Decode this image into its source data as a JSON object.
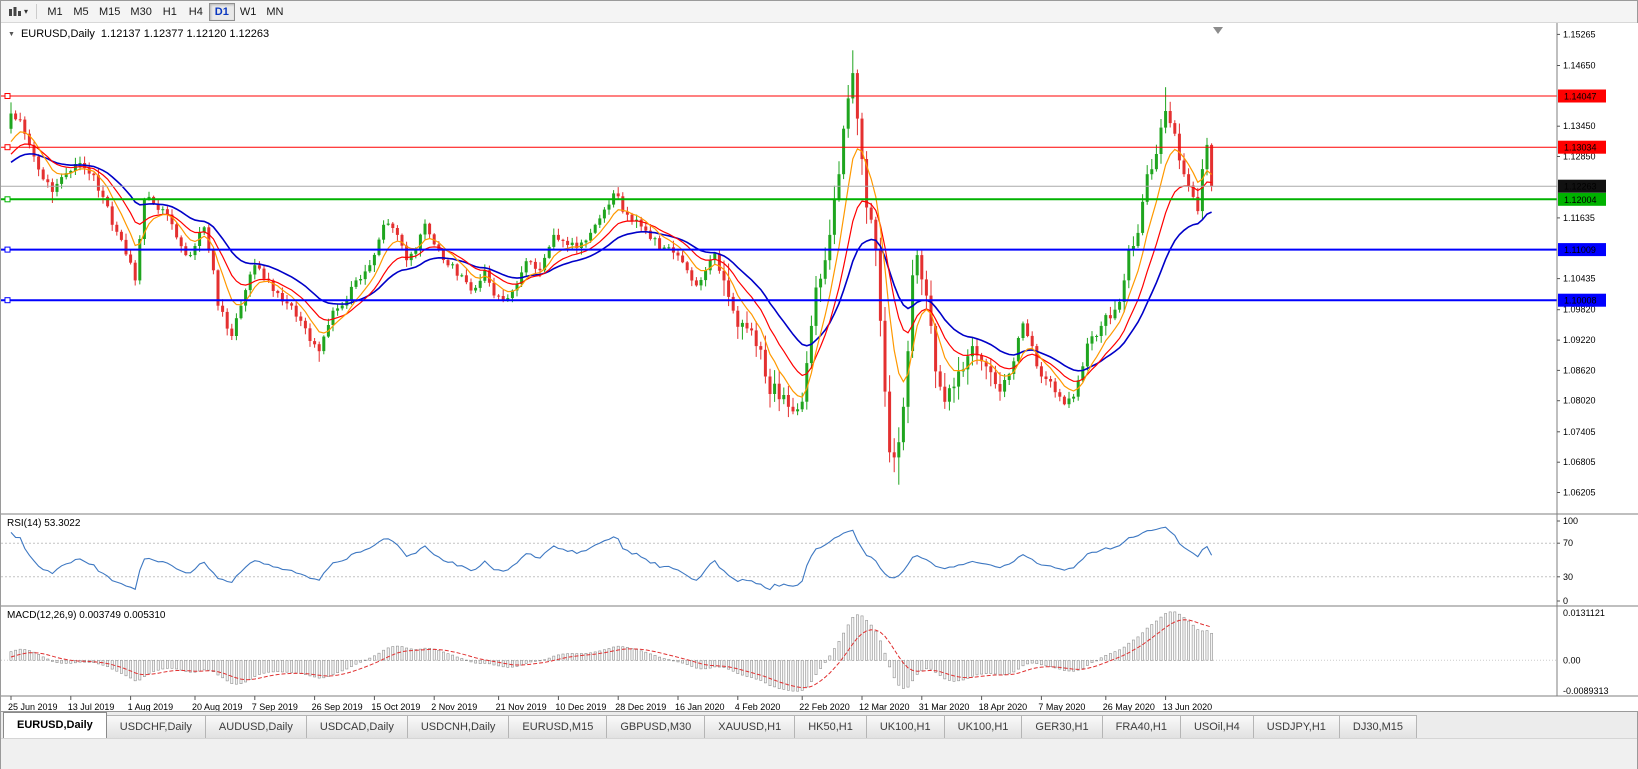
{
  "toolbar": {
    "chart_icon": "candlestick-chart-icon",
    "caret": "▾",
    "timeframes": [
      {
        "label": "M1",
        "active": false
      },
      {
        "label": "M5",
        "active": false
      },
      {
        "label": "M15",
        "active": false
      },
      {
        "label": "M30",
        "active": false
      },
      {
        "label": "H1",
        "active": false
      },
      {
        "label": "H4",
        "active": false
      },
      {
        "label": "D1",
        "active": true
      },
      {
        "label": "W1",
        "active": false
      },
      {
        "label": "MN",
        "active": false
      }
    ]
  },
  "header": {
    "title_symbol": "EURUSD,Daily",
    "title_ohlc": "1.12137 1.12377 1.12120 1.12263"
  },
  "chart_data": {
    "type": "candlestick",
    "symbol": "EURUSD",
    "period": "Daily",
    "ohlc": {
      "open": "1.12137",
      "high": "1.12377",
      "low": "1.12120",
      "close": "1.12263"
    },
    "y_axis_ticks": [
      "1.15265",
      "1.14650",
      "1.13450",
      "1.12850",
      "1.11635",
      "1.10435",
      "1.09820",
      "1.09220",
      "1.08620",
      "1.08020",
      "1.07405",
      "1.06805",
      "1.06205"
    ],
    "price_lines": [
      {
        "value": 1.14047,
        "label": "1.14047",
        "color": "#ff0000",
        "width": 1
      },
      {
        "value": 1.13034,
        "label": "1.13034",
        "color": "#ff0000",
        "width": 1
      },
      {
        "value": 1.12004,
        "label": "1.12004",
        "color": "#00b200",
        "width": 2
      },
      {
        "value": 1.11009,
        "label": "1.11009",
        "color": "#0000ff",
        "width": 2
      },
      {
        "value": 1.10008,
        "label": "1.10008",
        "color": "#0000ff",
        "width": 2
      }
    ],
    "current_price": {
      "value": 1.12263,
      "label": "1.12263",
      "line_color": "#aaaaaa",
      "badge_color": "#111111"
    },
    "x_axis_labels": [
      {
        "index": 0,
        "label": "25 Jun 2019"
      },
      {
        "index": 13,
        "label": "13 Jul 2019"
      },
      {
        "index": 26,
        "label": "1 Aug 2019"
      },
      {
        "index": 40,
        "label": "20 Aug 2019"
      },
      {
        "index": 53,
        "label": "7 Sep 2019"
      },
      {
        "index": 66,
        "label": "26 Sep 2019"
      },
      {
        "index": 79,
        "label": "15 Oct 2019"
      },
      {
        "index": 92,
        "label": "2 Nov 2019"
      },
      {
        "index": 106,
        "label": "21 Nov 2019"
      },
      {
        "index": 119,
        "label": "10 Dec 2019"
      },
      {
        "index": 132,
        "label": "28 Dec 2019"
      },
      {
        "index": 145,
        "label": "16 Jan 2020"
      },
      {
        "index": 158,
        "label": "4 Feb 2020"
      },
      {
        "index": 172,
        "label": "22 Feb 2020"
      },
      {
        "index": 185,
        "label": "12 Mar 2020"
      },
      {
        "index": 198,
        "label": "31 Mar 2020"
      },
      {
        "index": 211,
        "label": "18 Apr 2020"
      },
      {
        "index": 224,
        "label": "7 May 2020"
      },
      {
        "index": 238,
        "label": "26 May 2020"
      },
      {
        "index": 251,
        "label": "13 Jun 2020"
      }
    ],
    "bars_count": 262,
    "prehistory_anchors": [
      [
        -60,
        1.1245
      ],
      [
        -40,
        1.1275
      ],
      [
        -25,
        1.1255
      ],
      [
        -12,
        1.1225
      ],
      [
        -6,
        1.1265
      ],
      [
        -2,
        1.1305
      ]
    ],
    "close_anchors": [
      [
        0,
        1.137
      ],
      [
        2,
        1.1358
      ],
      [
        3,
        1.133
      ],
      [
        5,
        1.1285
      ],
      [
        7,
        1.124
      ],
      [
        9,
        1.1215
      ],
      [
        12,
        1.1252
      ],
      [
        14,
        1.127
      ],
      [
        16,
        1.1262
      ],
      [
        18,
        1.1248
      ],
      [
        20,
        1.1205
      ],
      [
        22,
        1.115
      ],
      [
        24,
        1.112
      ],
      [
        26,
        1.1075
      ],
      [
        27,
        1.104
      ],
      [
        29,
        1.12
      ],
      [
        31,
        1.1192
      ],
      [
        34,
        1.117
      ],
      [
        36,
        1.1125
      ],
      [
        38,
        1.109
      ],
      [
        40,
        1.1108
      ],
      [
        42,
        1.1145
      ],
      [
        44,
        1.106
      ],
      [
        45,
        1.099
      ],
      [
        48,
        1.093
      ],
      [
        50,
        1.099
      ],
      [
        53,
        1.107
      ],
      [
        56,
        1.104
      ],
      [
        58,
        1.1015
      ],
      [
        61,
        1.099
      ],
      [
        63,
        1.096
      ],
      [
        65,
        1.092
      ],
      [
        67,
        1.09
      ],
      [
        70,
        1.098
      ],
      [
        73,
        1.1
      ],
      [
        75,
        1.104
      ],
      [
        78,
        1.107
      ],
      [
        81,
        1.115
      ],
      [
        84,
        1.113
      ],
      [
        86,
        1.108
      ],
      [
        88,
        1.11
      ],
      [
        90,
        1.1152
      ],
      [
        93,
        1.11
      ],
      [
        95,
        1.107
      ],
      [
        98,
        1.105
      ],
      [
        100,
        1.102
      ],
      [
        103,
        1.106
      ],
      [
        105,
        1.101
      ],
      [
        107,
        1.1
      ],
      [
        109,
        1.102
      ],
      [
        112,
        1.1078
      ],
      [
        115,
        1.106
      ],
      [
        118,
        1.113
      ],
      [
        121,
        1.111
      ],
      [
        124,
        1.1115
      ],
      [
        127,
        1.115
      ],
      [
        129,
        1.118
      ],
      [
        131,
        1.1212
      ],
      [
        134,
        1.117
      ],
      [
        136,
        1.116
      ],
      [
        139,
        1.1122
      ],
      [
        142,
        1.1105
      ],
      [
        144,
        1.1095
      ],
      [
        147,
        1.106
      ],
      [
        149,
        1.103
      ],
      [
        151,
        1.106
      ],
      [
        153,
        1.1093
      ],
      [
        155,
        1.104
      ],
      [
        157,
        1.098
      ],
      [
        160,
        1.0945
      ],
      [
        162,
        1.091
      ],
      [
        164,
        1.085
      ],
      [
        167,
        1.0805
      ],
      [
        169,
        1.079
      ],
      [
        171,
        1.0785
      ],
      [
        172,
        1.08
      ],
      [
        174,
        1.095
      ],
      [
        175,
        1.1026
      ],
      [
        177,
        1.108
      ],
      [
        178,
        1.113
      ],
      [
        180,
        1.125
      ],
      [
        181,
        1.134
      ],
      [
        183,
        1.145
      ],
      [
        184,
        1.136
      ],
      [
        185,
        1.128
      ],
      [
        186,
        1.1184
      ],
      [
        187,
        1.116
      ],
      [
        188,
        1.11
      ],
      [
        189,
        1.096
      ],
      [
        190,
        1.082
      ],
      [
        191,
        1.07
      ],
      [
        192,
        1.069
      ],
      [
        193,
        1.072
      ],
      [
        194,
        1.079
      ],
      [
        195,
        1.09
      ],
      [
        196,
        1.105
      ],
      [
        197,
        1.109
      ],
      [
        199,
        1.101
      ],
      [
        200,
        1.095
      ],
      [
        201,
        1.086
      ],
      [
        203,
        1.08
      ],
      [
        205,
        1.083
      ],
      [
        206,
        1.086
      ],
      [
        208,
        1.089
      ],
      [
        209,
        1.091
      ],
      [
        211,
        1.088
      ],
      [
        212,
        1.087
      ],
      [
        214,
        1.0835
      ],
      [
        215,
        1.082
      ],
      [
        217,
        1.0855
      ],
      [
        218,
        1.088
      ],
      [
        220,
        1.0955
      ],
      [
        222,
        1.091
      ],
      [
        223,
        1.087
      ],
      [
        225,
        1.0845
      ],
      [
        226,
        1.084
      ],
      [
        228,
        1.081
      ],
      [
        229,
        1.0795
      ],
      [
        231,
        1.081
      ],
      [
        233,
        1.087
      ],
      [
        234,
        1.0915
      ],
      [
        236,
        1.093
      ],
      [
        237,
        1.095
      ],
      [
        239,
        1.0965
      ],
      [
        240,
        1.0982
      ],
      [
        242,
        1.104
      ],
      [
        243,
        1.11
      ],
      [
        245,
        1.1134
      ],
      [
        247,
        1.125
      ],
      [
        249,
        1.129
      ],
      [
        251,
        1.1375
      ],
      [
        253,
        1.133
      ],
      [
        255,
        1.125
      ],
      [
        257,
        1.1205
      ],
      [
        258,
        1.1177
      ],
      [
        259,
        1.126
      ],
      [
        260,
        1.1308
      ],
      [
        261,
        1.12263
      ]
    ],
    "wick_overrides": [
      [
        0,
        1.1392,
        "high"
      ],
      [
        9,
        1.1193,
        "low"
      ],
      [
        67,
        1.0879,
        "low"
      ],
      [
        171,
        1.0778,
        "low"
      ],
      [
        183,
        1.1495,
        "high"
      ],
      [
        191,
        1.068,
        "low"
      ],
      [
        193,
        1.0636,
        "low"
      ],
      [
        251,
        1.1422,
        "high"
      ]
    ],
    "moving_averages": [
      {
        "period": 26,
        "type": "ema",
        "color": "#0000c8",
        "width": 1.6,
        "name": "ma-blue-slow"
      },
      {
        "period": 14,
        "type": "ema",
        "color": "#ff0000",
        "width": 1.2,
        "name": "ma-red-medium"
      },
      {
        "period": 7,
        "type": "ema",
        "color": "#ff9900",
        "width": 1.2,
        "name": "ma-orange-fast"
      }
    ],
    "rsi": {
      "label": "RSI(14) 53.3022",
      "period": 14,
      "value": "53.3022",
      "levels": [
        70,
        30
      ],
      "scale_labels": [
        "100",
        "70",
        "30",
        "0"
      ],
      "color": "#3e78c2"
    },
    "macd": {
      "label": "MACD(12,26,9) 0.003749 0.005310",
      "fast": 12,
      "slow": 26,
      "signal_period": 9,
      "values": [
        "0.003749",
        "0.005310"
      ],
      "scale_top": "0.0131121",
      "scale_zero": "0.00",
      "scale_bottom": "-0.0089313",
      "hist_color": "#909090",
      "signal_color": "#e03030"
    },
    "colors": {
      "bull": "#1fa51f",
      "bear": "#e43030",
      "background": "#ffffff",
      "separator": "#7f7f7f",
      "axis_text": "#000000"
    }
  },
  "tabs": [
    {
      "label": "EURUSD,Daily",
      "active": true
    },
    {
      "label": "USDCHF,Daily",
      "active": false
    },
    {
      "label": "AUDUSD,Daily",
      "active": false
    },
    {
      "label": "USDCAD,Daily",
      "active": false
    },
    {
      "label": "USDCNH,Daily",
      "active": false
    },
    {
      "label": "EURUSD,M15",
      "active": false
    },
    {
      "label": "GBPUSD,M30",
      "active": false
    },
    {
      "label": "XAUUSD,H1",
      "active": false
    },
    {
      "label": "HK50,H1",
      "active": false
    },
    {
      "label": "UK100,H1",
      "active": false
    },
    {
      "label": "UK100,H1",
      "active": false
    },
    {
      "label": "GER30,H1",
      "active": false
    },
    {
      "label": "FRA40,H1",
      "active": false
    },
    {
      "label": "USOil,H4",
      "active": false
    },
    {
      "label": "USDJPY,H1",
      "active": false
    },
    {
      "label": "DJ30,M15",
      "active": false
    }
  ]
}
